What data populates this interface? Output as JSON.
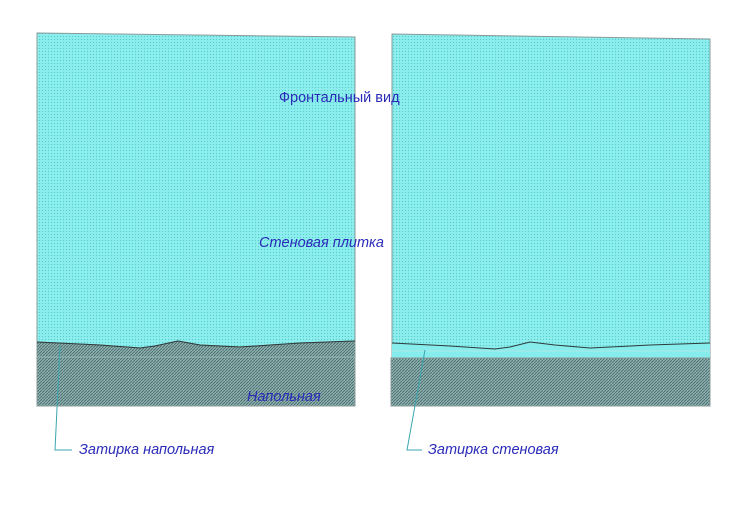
{
  "labels": {
    "front_view": "Фронтальный вид",
    "wall_tile": "Стеновая плитка",
    "floor": "Напольная",
    "grout_floor": "Затирка напольная",
    "grout_wall": "Затирка стеновая"
  },
  "colors": {
    "wall_tile": "#7fe8e8",
    "floor_tile": "#6e8e8e",
    "outline": "#8a8a8a",
    "text": "#2a2ab8",
    "leader": "#3aa6b0",
    "seam": "#2c3a3a"
  }
}
